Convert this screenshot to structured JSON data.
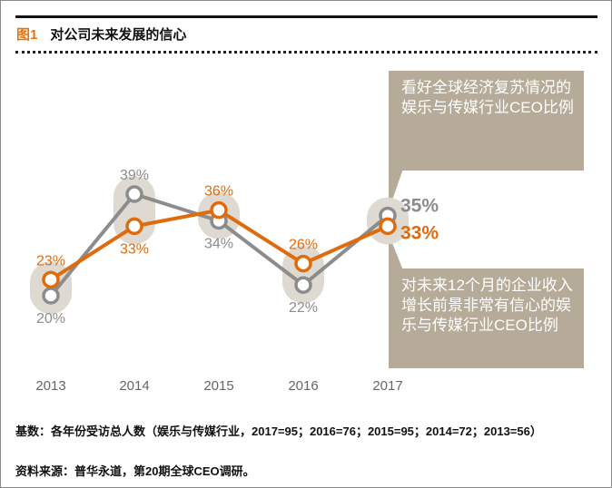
{
  "figure": {
    "number_label": "图1",
    "title": "对公司未来发展的信心"
  },
  "chart_data": {
    "type": "line",
    "title": "对公司未来发展的信心",
    "x": [
      "2013",
      "2014",
      "2015",
      "2016",
      "2017"
    ],
    "xlabel": "",
    "ylabel": "",
    "ylim": [
      0,
      45
    ],
    "grid": false,
    "series": [
      {
        "name": "看好全球经济复苏情况的娱乐与传媒行业CEO比例",
        "color": "#8c8c8c",
        "values": [
          20,
          39,
          34,
          22,
          35
        ],
        "labels": [
          "20%",
          "39%",
          "34%",
          "22%",
          "35%"
        ]
      },
      {
        "name": "对未来12个月的企业收入增长前景非常有信心的娱乐与传媒行业CEO比例",
        "color": "#e06b0d",
        "values": [
          23,
          33,
          36,
          26,
          33
        ],
        "labels": [
          "23%",
          "33%",
          "36%",
          "26%",
          "33%"
        ]
      }
    ],
    "legend": "callouts-right"
  },
  "callouts": {
    "grey": "看好全球经济复苏情况的娱乐与传媒行业CEO比例",
    "orange": "对未来12个月的企业收入增长前景非常有信心的娱乐与传媒行业CEO比例"
  },
  "footer": {
    "base": "基数：各年份受访总人数（娱乐与传媒行业，2017=95；2016=76；2015=95；2014=72；2013=56）",
    "source": "资料来源：普华永道，第20期全球CEO调研。"
  },
  "colors": {
    "orange": "#e06b0d",
    "grey": "#8c8c8c",
    "halo": "#dedad2",
    "callout": "#b5ab98"
  }
}
